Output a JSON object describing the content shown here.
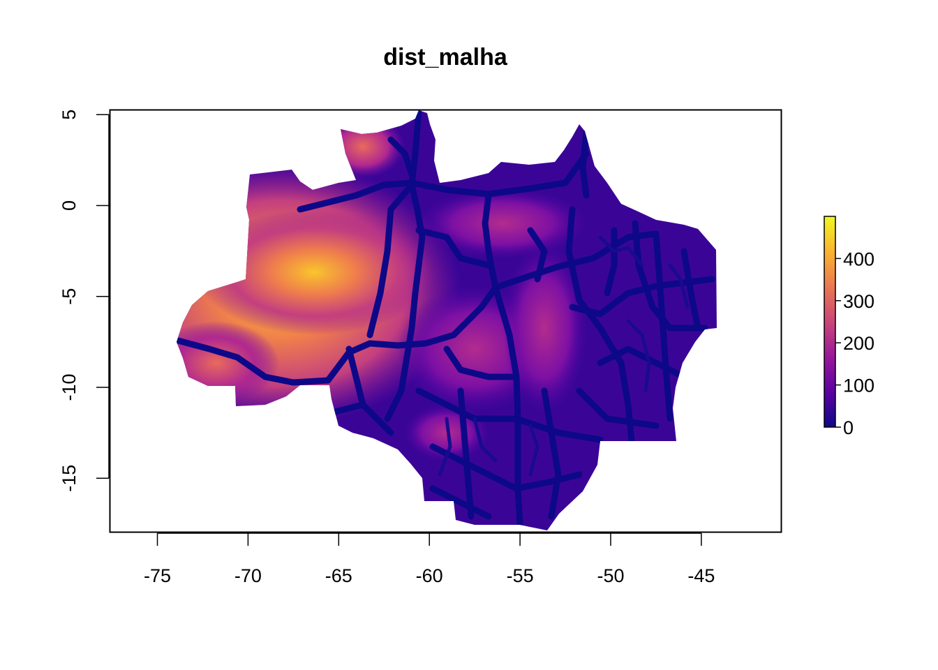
{
  "title": "dist_malha",
  "chart_data": {
    "type": "heatmap",
    "title": "dist_malha",
    "xlabel": "",
    "ylabel": "",
    "xlim": [
      -78,
      -41
    ],
    "ylim": [
      -18,
      5.3
    ],
    "x_ticks": [
      -75,
      -70,
      -65,
      -60,
      -55,
      -50,
      -45
    ],
    "y_ticks": [
      5,
      0,
      -5,
      -10,
      -15
    ],
    "legend": {
      "type": "colorbar",
      "placement": "right",
      "range": [
        0,
        500
      ],
      "ticks": [
        0,
        100,
        200,
        300,
        400
      ],
      "colors": [
        "#0d0887",
        "#5b02a3",
        "#9a179b",
        "#cb4678",
        "#eb7852",
        "#fbb32f",
        "#eff821"
      ]
    },
    "hotspots": [
      {
        "x": -68.5,
        "y": -4,
        "value": 480
      },
      {
        "x": -66,
        "y": -3.5,
        "value": 390
      },
      {
        "x": -71.5,
        "y": -2.5,
        "value": 330
      },
      {
        "x": -62.8,
        "y": 2.6,
        "value": 300
      },
      {
        "x": -72,
        "y": -9,
        "value": 240
      },
      {
        "x": -57.5,
        "y": -8,
        "value": 200
      },
      {
        "x": -53.5,
        "y": -6.5,
        "value": 190
      },
      {
        "x": -56.5,
        "y": -1.5,
        "value": 170
      }
    ]
  }
}
